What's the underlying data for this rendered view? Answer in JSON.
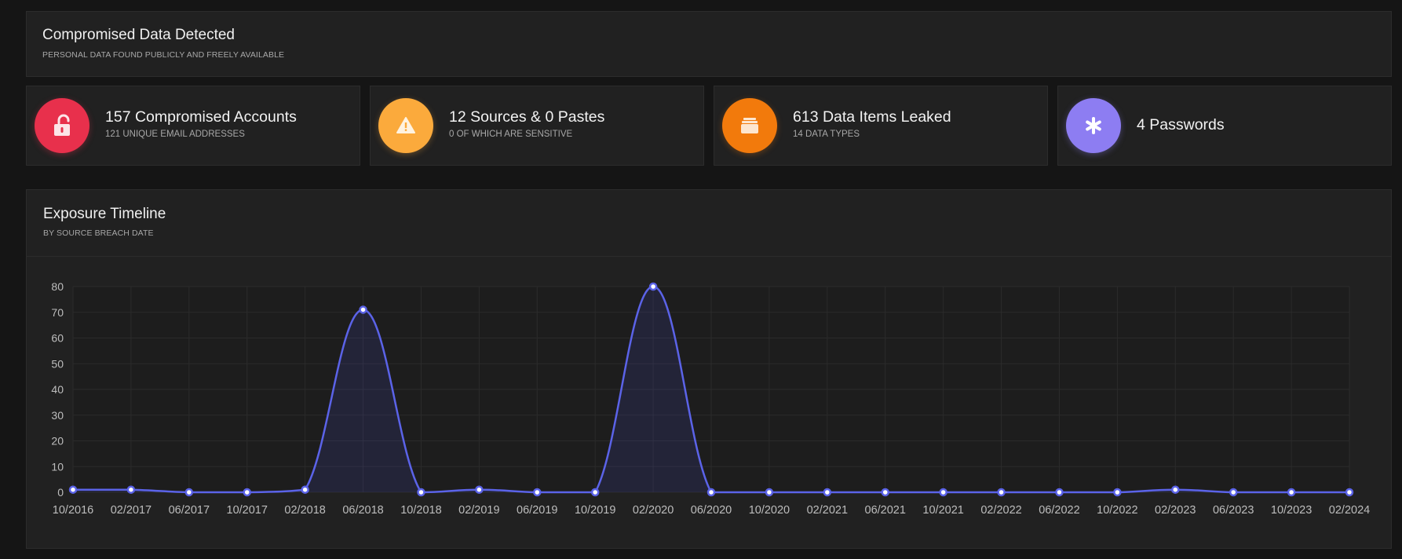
{
  "header": {
    "title": "Compromised Data Detected",
    "subtitle": "PERSONAL DATA FOUND PUBLICLY AND FREELY AVAILABLE"
  },
  "stats": [
    {
      "title": "157 Compromised Accounts",
      "subtitle": "121 UNIQUE EMAIL ADDRESSES",
      "icon": "unlocked-padlock-icon",
      "color": "#e8304c"
    },
    {
      "title": "12 Sources & 0 Pastes",
      "subtitle": "0 OF WHICH ARE SENSITIVE",
      "icon": "warning-icon",
      "color": "#fbaa3c"
    },
    {
      "title": "613 Data Items Leaked",
      "subtitle": "14 DATA TYPES",
      "icon": "stacked-cards-icon",
      "color": "#f27a0c"
    },
    {
      "title": "4 Passwords",
      "subtitle": "",
      "icon": "asterisk-icon",
      "color": "#8d7df2"
    }
  ],
  "timeline": {
    "title": "Exposure Timeline",
    "subtitle": "BY SOURCE BREACH DATE"
  },
  "chart_data": {
    "type": "area",
    "categories": [
      "10/2016",
      "02/2017",
      "06/2017",
      "10/2017",
      "02/2018",
      "06/2018",
      "10/2018",
      "02/2019",
      "06/2019",
      "10/2019",
      "02/2020",
      "06/2020",
      "10/2020",
      "02/2021",
      "06/2021",
      "10/2021",
      "02/2022",
      "06/2022",
      "10/2022",
      "02/2023",
      "06/2023",
      "10/2023",
      "02/2024"
    ],
    "series": [
      {
        "values": [
          1,
          1,
          0,
          0,
          1,
          71,
          0,
          1,
          0,
          0,
          80,
          0,
          0,
          0,
          0,
          0,
          0,
          0,
          0,
          1,
          0,
          0,
          0
        ]
      }
    ],
    "ylim": [
      0,
      80
    ],
    "yticks": [
      0,
      10,
      20,
      30,
      40,
      50,
      60,
      70,
      80
    ],
    "grid": true,
    "line_color": "#5b63e8",
    "xlabel": "",
    "ylabel": ""
  }
}
